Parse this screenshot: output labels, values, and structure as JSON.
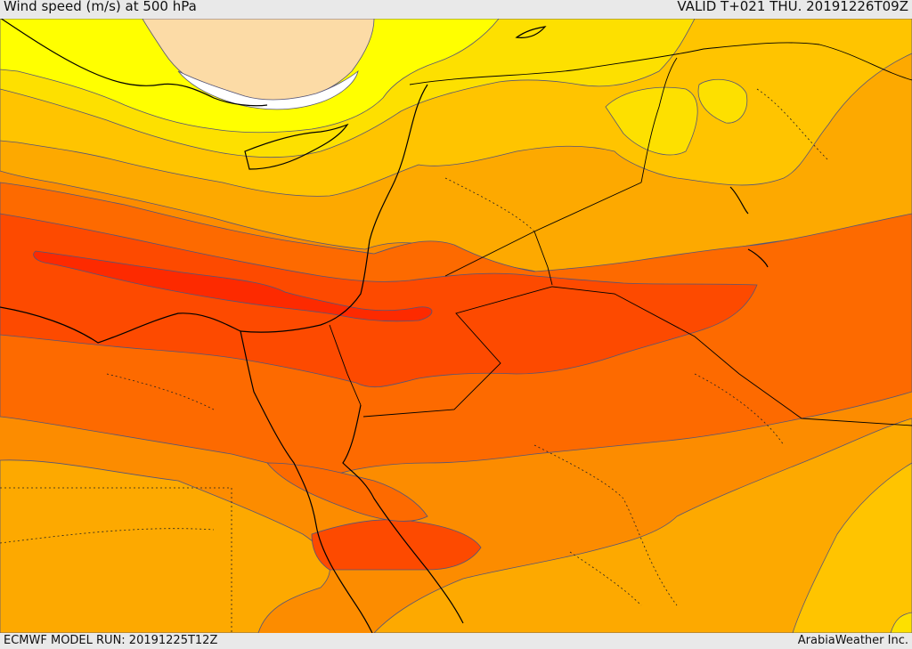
{
  "header": {
    "title": "Wind speed (m/s) at 500 hPa",
    "valid_time": "VALID T+021 THU. 20191226T09Z"
  },
  "footer": {
    "model_run": "ECMWF MODEL RUN: 20191225T12Z",
    "credit": "ArabiaWeather Inc."
  },
  "colors": {
    "pale_peach": "#fcdba6",
    "white": "#ffffff",
    "bright_yellow": "#ffff00",
    "yellow": "#fde000",
    "light_orange": "#ffc400",
    "orange": "#fda900",
    "dark_orange": "#fc8c00",
    "red_orange": "#fd6a00",
    "red": "#fd4a00",
    "deep_red": "#fd2a00",
    "coastline": "#000000",
    "border": "#000000",
    "contour": "#3a3aaa"
  }
}
